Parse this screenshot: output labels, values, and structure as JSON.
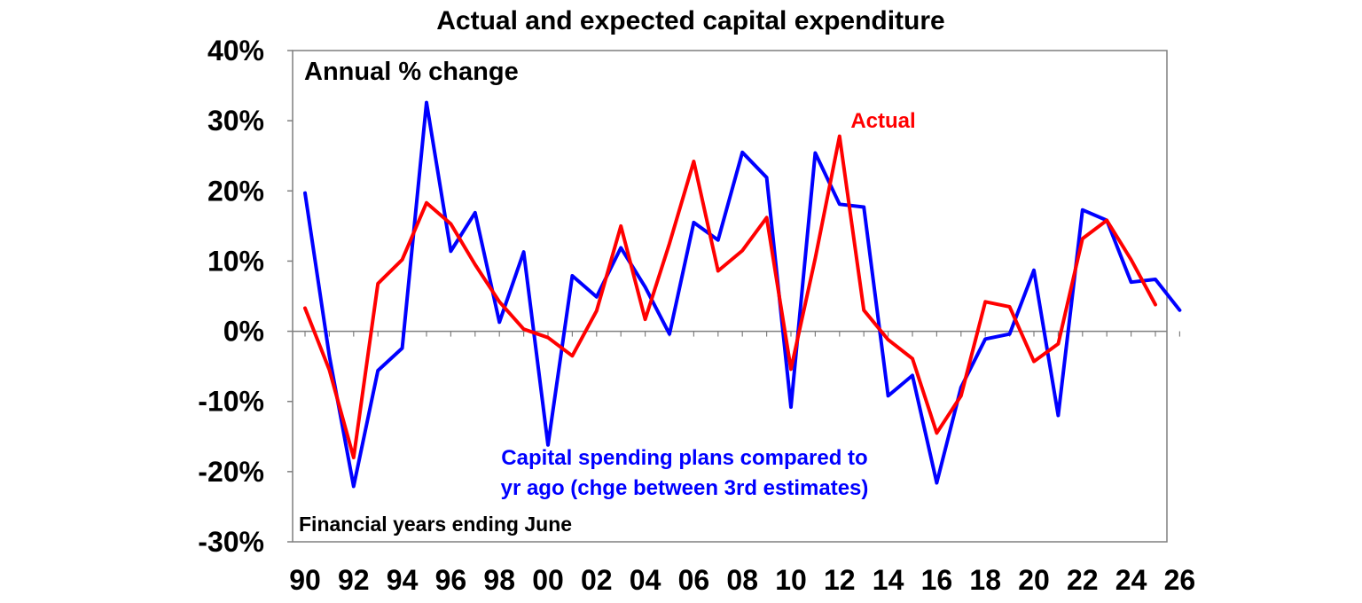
{
  "chart_data": {
    "type": "line",
    "title": "Actual and expected capital expenditure",
    "ylabel": "Annual % change",
    "xlabel": "Financial years ending June",
    "ylim": [
      -30,
      40
    ],
    "yticks": [
      -30,
      -20,
      -10,
      0,
      10,
      20,
      30,
      40
    ],
    "ytick_labels": [
      "-30%",
      "-20%",
      "-10%",
      "0%",
      "10%",
      "20%",
      "30%",
      "40%"
    ],
    "xlim": [
      1990,
      2026
    ],
    "xtick_labels": [
      {
        "year": 1990,
        "label": "90"
      },
      {
        "year": 1992,
        "label": "92"
      },
      {
        "year": 1994,
        "label": "94"
      },
      {
        "year": 1996,
        "label": "96"
      },
      {
        "year": 1998,
        "label": "98"
      },
      {
        "year": 2000,
        "label": "00"
      },
      {
        "year": 2002,
        "label": "02"
      },
      {
        "year": 2004,
        "label": "04"
      },
      {
        "year": 2006,
        "label": "06"
      },
      {
        "year": 2008,
        "label": "08"
      },
      {
        "year": 2010,
        "label": "10"
      },
      {
        "year": 2012,
        "label": "12"
      },
      {
        "year": 2014,
        "label": "14"
      },
      {
        "year": 2016,
        "label": "16"
      },
      {
        "year": 2018,
        "label": "18"
      },
      {
        "year": 2020,
        "label": "20"
      },
      {
        "year": 2022,
        "label": "22"
      },
      {
        "year": 2024,
        "label": "24"
      },
      {
        "year": 2026,
        "label": "26"
      }
    ],
    "series": [
      {
        "name": "Actual",
        "color": "#ff0000",
        "x": [
          1990,
          1991,
          1992,
          1993,
          1994,
          1995,
          1996,
          1997,
          1998,
          1999,
          2000,
          2001,
          2002,
          2003,
          2004,
          2005,
          2006,
          2007,
          2008,
          2009,
          2010,
          2011,
          2012,
          2013,
          2014,
          2015,
          2016,
          2017,
          2018,
          2019,
          2020,
          2021,
          2022,
          2023,
          2024,
          2025
        ],
        "values": [
          3.3,
          -5.5,
          -18,
          6.8,
          10.2,
          18.3,
          15.3,
          9.5,
          4.2,
          0.3,
          -0.9,
          -3.5,
          2.9,
          15,
          1.7,
          12.5,
          24.2,
          8.6,
          11.5,
          16.2,
          -5.4,
          10.4,
          27.8,
          3,
          -1.2,
          -3.9,
          -14.5,
          -9.2,
          4.2,
          3.5,
          -4.3,
          -1.8,
          13.2,
          15.8,
          10.2,
          3.8
        ]
      },
      {
        "name": "Capital spending plans compared to yr ago (chge between 3rd estimates)",
        "color": "#0000ff",
        "x": [
          1990,
          1991,
          1992,
          1993,
          1994,
          1995,
          1996,
          1997,
          1998,
          1999,
          2000,
          2001,
          2002,
          2003,
          2004,
          2005,
          2006,
          2007,
          2008,
          2009,
          2010,
          2011,
          2012,
          2013,
          2014,
          2015,
          2016,
          2017,
          2018,
          2019,
          2020,
          2021,
          2022,
          2023,
          2024,
          2025,
          2026
        ],
        "values": [
          19.7,
          -3.5,
          -22.1,
          -5.6,
          -2.4,
          32.6,
          11.4,
          16.9,
          1.3,
          11.3,
          -16.2,
          7.9,
          4.9,
          11.9,
          6.3,
          -0.4,
          15.5,
          13,
          25.5,
          21.9,
          -10.8,
          25.4,
          18.1,
          17.7,
          -9.2,
          -6.3,
          -21.6,
          -8,
          -1.1,
          -0.4,
          8.7,
          -12,
          17.3,
          15.8,
          7,
          7.4,
          3
        ]
      }
    ],
    "annotations": {
      "actual": "Actual",
      "plans_line1": "Capital spending plans compared to",
      "plans_line2": "yr ago (chge between 3rd estimates)"
    }
  }
}
